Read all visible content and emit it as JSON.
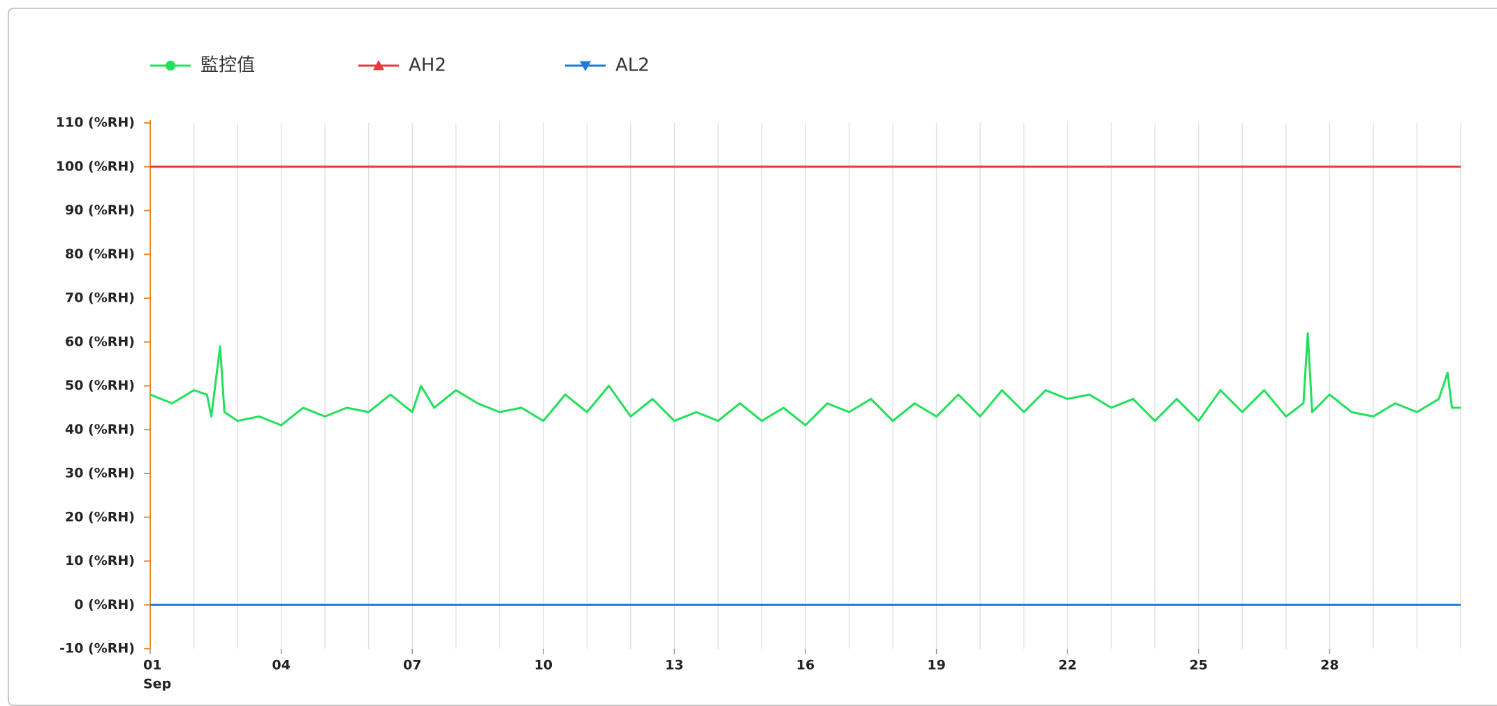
{
  "chart_data": {
    "type": "line",
    "xlim": [
      1,
      31
    ],
    "ylim": [
      -10,
      110
    ],
    "xgrid_step": 1,
    "x_month": "Sep",
    "xticks": [
      {
        "value": 1,
        "label": "01"
      },
      {
        "value": 4,
        "label": "04"
      },
      {
        "value": 7,
        "label": "07"
      },
      10,
      13,
      16,
      19,
      22,
      25,
      28
    ],
    "yticks": [
      {
        "value": -10,
        "label": "-10 (%RH)"
      },
      {
        "value": 0,
        "label": "0 (%RH)"
      },
      {
        "value": 10,
        "label": "10 (%RH)"
      },
      {
        "value": 20,
        "label": "20 (%RH)"
      },
      {
        "value": 30,
        "label": "30 (%RH)"
      },
      {
        "value": 40,
        "label": "40 (%RH)"
      },
      {
        "value": 50,
        "label": "50 (%RH)"
      },
      {
        "value": 60,
        "label": "60 (%RH)"
      },
      {
        "value": 70,
        "label": "70 (%RH)"
      },
      {
        "value": 80,
        "label": "80 (%RH)"
      },
      {
        "value": 90,
        "label": "90 (%RH)"
      },
      {
        "value": 100,
        "label": "100 (%RH)"
      },
      {
        "value": 110,
        "label": "110 (%RH)"
      }
    ],
    "grid": true,
    "series": [
      {
        "name": "監控值",
        "color": "#22e05a",
        "marker": "circle",
        "x": [
          1.0,
          1.5,
          2.0,
          2.3,
          2.4,
          2.6,
          2.7,
          3.0,
          3.5,
          4.0,
          4.5,
          5.0,
          5.5,
          6.0,
          6.5,
          7.0,
          7.2,
          7.5,
          8.0,
          8.5,
          9.0,
          9.5,
          10.0,
          10.5,
          11.0,
          11.5,
          12.0,
          12.5,
          13.0,
          13.5,
          14.0,
          14.5,
          15.0,
          15.5,
          16.0,
          16.5,
          17.0,
          17.5,
          18.0,
          18.5,
          19.0,
          19.5,
          20.0,
          20.5,
          21.0,
          21.5,
          22.0,
          22.5,
          23.0,
          23.5,
          24.0,
          24.5,
          25.0,
          25.5,
          26.0,
          26.5,
          27.0,
          27.4,
          27.5,
          27.6,
          28.0,
          28.5,
          29.0,
          29.5,
          30.0,
          30.5,
          30.7,
          30.8,
          31.0
        ],
        "values": [
          48,
          46,
          49,
          48,
          43,
          59,
          44,
          42,
          43,
          41,
          45,
          43,
          45,
          44,
          48,
          44,
          50,
          45,
          49,
          46,
          44,
          45,
          42,
          48,
          44,
          50,
          43,
          47,
          42,
          44,
          42,
          46,
          42,
          45,
          41,
          46,
          44,
          47,
          42,
          46,
          43,
          48,
          43,
          49,
          44,
          49,
          47,
          48,
          45,
          47,
          42,
          47,
          42,
          49,
          44,
          49,
          43,
          46,
          62,
          44,
          48,
          44,
          43,
          46,
          44,
          47,
          53,
          45,
          45
        ]
      },
      {
        "name": "AH2",
        "color": "#e8383d",
        "marker": "triangle",
        "x": [
          1,
          31
        ],
        "values": [
          100,
          100
        ]
      },
      {
        "name": "AL2",
        "color": "#1a7bd8",
        "marker": "triangle-down",
        "x": [
          1,
          31
        ],
        "values": [
          0,
          0
        ]
      }
    ]
  }
}
